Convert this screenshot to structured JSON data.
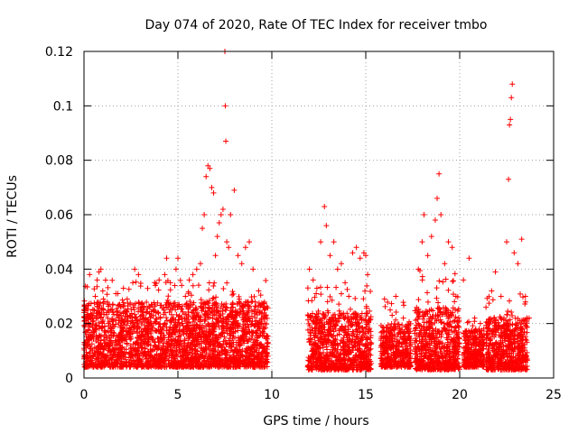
{
  "chart_data": {
    "type": "scatter",
    "title": "Day 074 of 2020, Rate Of TEC Index for receiver tmbo",
    "xlabel": "GPS time / hours",
    "ylabel": "ROTI / TECUs",
    "xlim": [
      0,
      25
    ],
    "ylim": [
      0,
      0.12
    ],
    "x_ticks": [
      "0",
      "5",
      "10",
      "15",
      "20",
      "25"
    ],
    "y_ticks": [
      "0",
      "0.02",
      "0.04",
      "0.06",
      "0.08",
      "0.1",
      "0.12"
    ],
    "grid": true,
    "marker": "+",
    "color": "#ff0000",
    "series": [
      {
        "points": [
          [
            0.1,
            0.012
          ],
          [
            0.2,
            0.025
          ],
          [
            0.3,
            0.038
          ],
          [
            0.5,
            0.021
          ],
          [
            0.6,
            0.03
          ],
          [
            0.7,
            0.036
          ],
          [
            0.8,
            0.039
          ],
          [
            0.9,
            0.04
          ],
          [
            1.0,
            0.032
          ],
          [
            1.1,
            0.028
          ],
          [
            1.3,
            0.02
          ],
          [
            1.5,
            0.025
          ],
          [
            1.7,
            0.031
          ],
          [
            1.9,
            0.027
          ],
          [
            2.1,
            0.033
          ],
          [
            2.3,
            0.029
          ],
          [
            2.6,
            0.035
          ],
          [
            2.7,
            0.04
          ],
          [
            2.9,
            0.038
          ],
          [
            3.2,
            0.026
          ],
          [
            3.5,
            0.02
          ],
          [
            3.8,
            0.034
          ],
          [
            4.0,
            0.036
          ],
          [
            4.3,
            0.038
          ],
          [
            4.4,
            0.044
          ],
          [
            4.6,
            0.035
          ],
          [
            4.9,
            0.04
          ],
          [
            5.0,
            0.044
          ],
          [
            5.2,
            0.034
          ],
          [
            5.4,
            0.03
          ],
          [
            5.6,
            0.036
          ],
          [
            5.8,
            0.038
          ],
          [
            6.0,
            0.04
          ],
          [
            6.2,
            0.042
          ],
          [
            6.3,
            0.055
          ],
          [
            6.4,
            0.06
          ],
          [
            6.5,
            0.074
          ],
          [
            6.6,
            0.078
          ],
          [
            6.7,
            0.077
          ],
          [
            6.8,
            0.07
          ],
          [
            6.9,
            0.068
          ],
          [
            7.0,
            0.045
          ],
          [
            7.1,
            0.052
          ],
          [
            7.2,
            0.057
          ],
          [
            7.3,
            0.06
          ],
          [
            7.4,
            0.062
          ],
          [
            7.5,
            0.12
          ],
          [
            7.52,
            0.1
          ],
          [
            7.55,
            0.087
          ],
          [
            7.6,
            0.05
          ],
          [
            7.7,
            0.048
          ],
          [
            7.8,
            0.06
          ],
          [
            8.0,
            0.069
          ],
          [
            8.2,
            0.045
          ],
          [
            8.4,
            0.042
          ],
          [
            8.6,
            0.048
          ],
          [
            8.8,
            0.05
          ],
          [
            9.0,
            0.04
          ],
          [
            9.3,
            0.032
          ],
          [
            9.6,
            0.025
          ],
          [
            12.0,
            0.04
          ],
          [
            12.2,
            0.036
          ],
          [
            12.4,
            0.033
          ],
          [
            12.6,
            0.05
          ],
          [
            12.8,
            0.063
          ],
          [
            12.9,
            0.056
          ],
          [
            13.1,
            0.045
          ],
          [
            13.3,
            0.05
          ],
          [
            13.5,
            0.04
          ],
          [
            13.7,
            0.042
          ],
          [
            13.9,
            0.035
          ],
          [
            14.1,
            0.03
          ],
          [
            14.3,
            0.046
          ],
          [
            14.5,
            0.048
          ],
          [
            14.7,
            0.044
          ],
          [
            14.9,
            0.046
          ],
          [
            15.0,
            0.045
          ],
          [
            15.1,
            0.038
          ],
          [
            16.0,
            0.029
          ],
          [
            16.3,
            0.025
          ],
          [
            16.6,
            0.03
          ],
          [
            17.0,
            0.022
          ],
          [
            17.3,
            0.018
          ],
          [
            17.8,
            0.04
          ],
          [
            18.0,
            0.05
          ],
          [
            18.1,
            0.06
          ],
          [
            18.3,
            0.045
          ],
          [
            18.5,
            0.052
          ],
          [
            18.7,
            0.058
          ],
          [
            18.8,
            0.066
          ],
          [
            18.9,
            0.075
          ],
          [
            19.0,
            0.06
          ],
          [
            19.2,
            0.042
          ],
          [
            19.4,
            0.05
          ],
          [
            19.6,
            0.048
          ],
          [
            19.8,
            0.03
          ],
          [
            20.2,
            0.036
          ],
          [
            20.5,
            0.044
          ],
          [
            20.8,
            0.022
          ],
          [
            21.1,
            0.02
          ],
          [
            21.4,
            0.026
          ],
          [
            21.7,
            0.032
          ],
          [
            21.9,
            0.039
          ],
          [
            22.2,
            0.03
          ],
          [
            22.5,
            0.05
          ],
          [
            22.6,
            0.073
          ],
          [
            22.65,
            0.093
          ],
          [
            22.7,
            0.095
          ],
          [
            22.75,
            0.103
          ],
          [
            22.8,
            0.108
          ],
          [
            22.9,
            0.046
          ],
          [
            23.1,
            0.042
          ],
          [
            23.3,
            0.051
          ],
          [
            23.5,
            0.03
          ],
          [
            23.7,
            0.022
          ],
          [
            0.2,
            0.008
          ],
          [
            1.0,
            0.006
          ],
          [
            2.0,
            0.007
          ],
          [
            3.0,
            0.006
          ],
          [
            4.0,
            0.007
          ],
          [
            5.0,
            0.006
          ],
          [
            6.0,
            0.005
          ],
          [
            7.0,
            0.006
          ],
          [
            8.0,
            0.007
          ],
          [
            9.0,
            0.006
          ],
          [
            12.2,
            0.007
          ],
          [
            13.0,
            0.004
          ],
          [
            14.0,
            0.005
          ],
          [
            15.0,
            0.006
          ],
          [
            16.2,
            0.005
          ],
          [
            17.2,
            0.006
          ],
          [
            18.2,
            0.004
          ],
          [
            19.2,
            0.003
          ],
          [
            20.5,
            0.006
          ],
          [
            21.5,
            0.003
          ],
          [
            22.5,
            0.004
          ],
          [
            23.5,
            0.006
          ]
        ]
      }
    ],
    "dense_bands": [
      {
        "x_start": 0.0,
        "x_end": 9.8,
        "y_low": 0.004,
        "y_high": 0.028,
        "peak": 0.036
      },
      {
        "x_start": 11.9,
        "x_end": 15.3,
        "y_low": 0.003,
        "y_high": 0.024,
        "peak": 0.035
      },
      {
        "x_start": 15.8,
        "x_end": 17.4,
        "y_low": 0.004,
        "y_high": 0.02,
        "peak": 0.028
      },
      {
        "x_start": 17.6,
        "x_end": 20.0,
        "y_low": 0.003,
        "y_high": 0.026,
        "peak": 0.04
      },
      {
        "x_start": 20.2,
        "x_end": 21.3,
        "y_low": 0.004,
        "y_high": 0.018,
        "peak": 0.022
      },
      {
        "x_start": 21.4,
        "x_end": 23.6,
        "y_low": 0.003,
        "y_high": 0.022,
        "peak": 0.032
      }
    ]
  }
}
